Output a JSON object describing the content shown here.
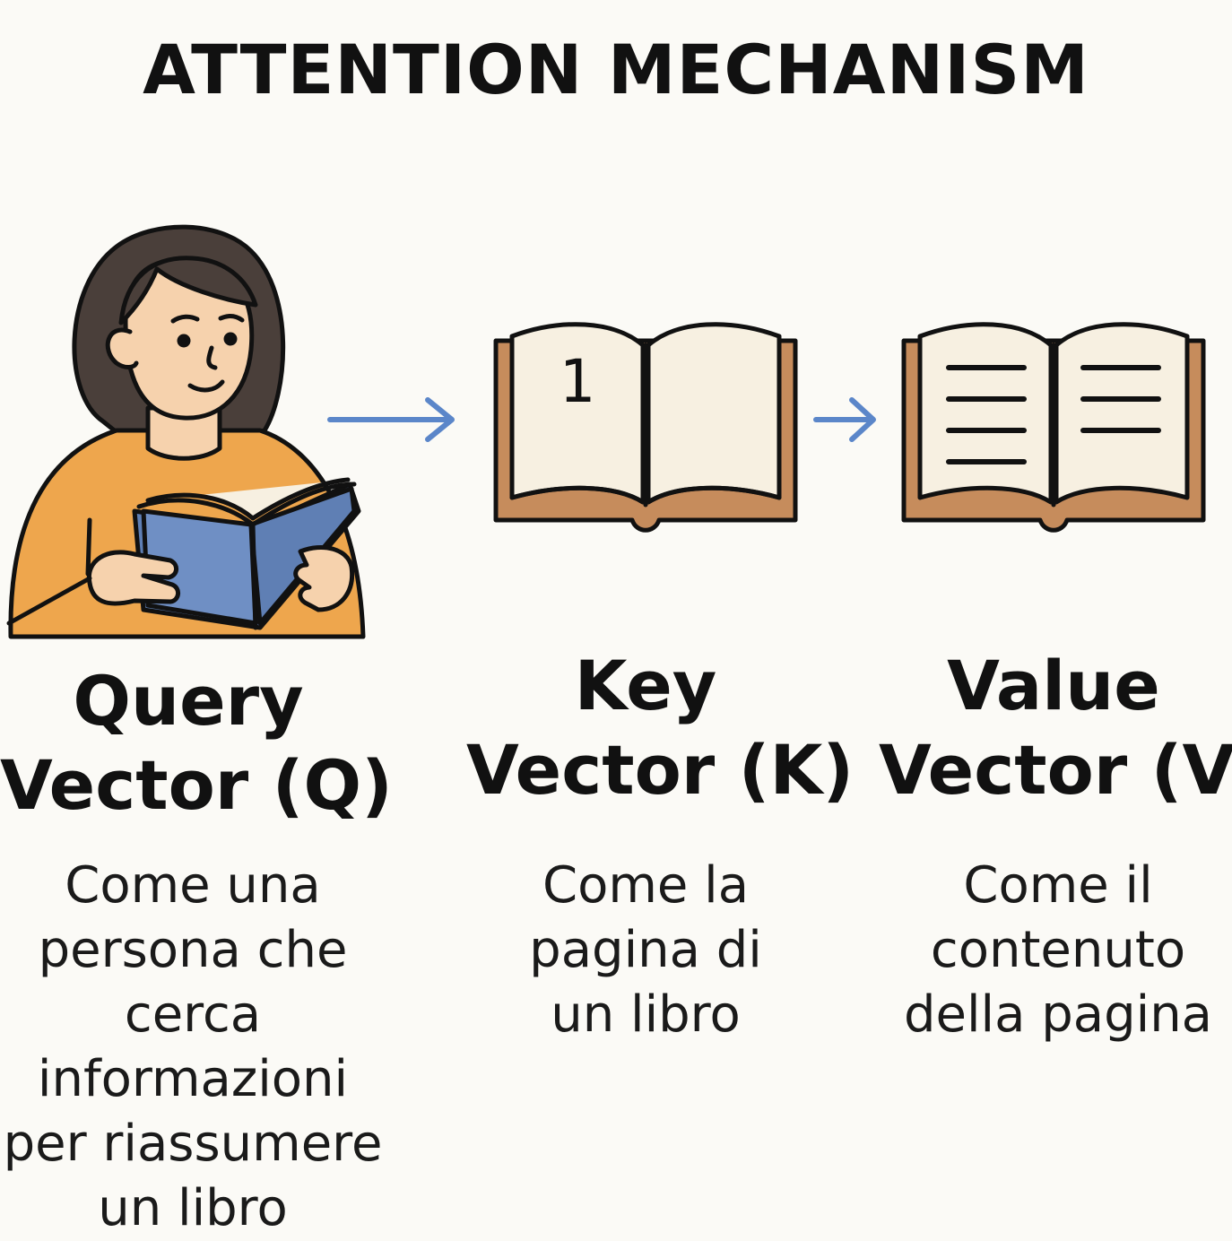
{
  "title": "ATTENTION MECHANISM",
  "columns": [
    {
      "illustration": "person-reading-icon",
      "heading_lines": [
        "Query",
        "Vector (Q)"
      ],
      "desc_lines": [
        "Come una",
        "persona che",
        "cerca",
        "informazioni",
        "per riassumere",
        "un libro"
      ]
    },
    {
      "illustration": "book-page-number-icon",
      "page_number": "1",
      "heading_lines": [
        "Key",
        "Vector (K)"
      ],
      "desc_lines": [
        "Come la",
        "pagina di",
        "un libro"
      ]
    },
    {
      "illustration": "book-content-icon",
      "heading_lines": [
        "Value",
        "Vector (V)"
      ],
      "desc_lines": [
        "Come il",
        "contenuto",
        "della pagina"
      ]
    }
  ],
  "colors": {
    "background": "#fbfaf6",
    "arrow": "#5b86c9",
    "book_cover": "#c68c5c",
    "book_page": "#f7f0e1",
    "blue_book": "#5f7fb4",
    "sweater": "#eea64d",
    "skin": "#f6d2ad",
    "hair": "#4a3f3a"
  }
}
